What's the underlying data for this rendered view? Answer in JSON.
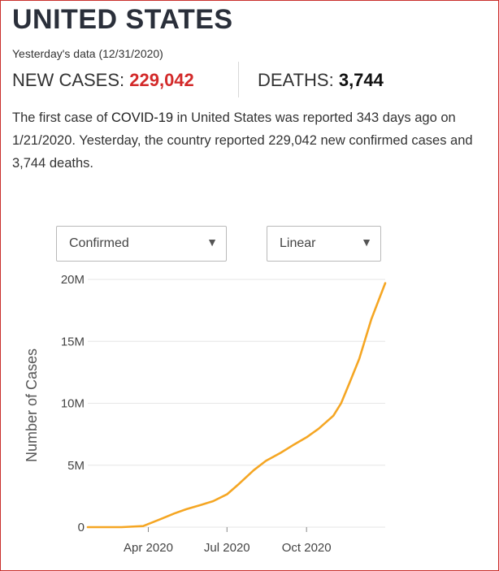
{
  "header": {
    "country": "UNITED STATES",
    "date_line": "Yesterday's data (12/31/2020)"
  },
  "stats": {
    "cases_label": "NEW CASES: ",
    "cases_value": "229,042",
    "deaths_label": "DEATHS: ",
    "deaths_value": "3,744"
  },
  "summary": {
    "part1": "The first case of ",
    "bold": "COVID-19",
    "part2": " in United States was reported 343 days ago on 1/21/2020. Yesterday, the country reported 229,042 new confirmed cases and 3,744 deaths."
  },
  "controls": {
    "metric_select": "Confirmed",
    "scale_select": "Linear",
    "arrow_icon": "triangle-down-icon"
  },
  "colors": {
    "accent_red": "#d32a2a",
    "line": "#f5a623",
    "frame_border": "#c9302c"
  },
  "chart_data": {
    "type": "line",
    "ylabel": "Number of Cases",
    "xlabel": "",
    "x_domain": [
      "2020-01-22",
      "2020-12-31"
    ],
    "ylim": [
      0,
      20000000
    ],
    "y_ticks": [
      {
        "value": 0,
        "label": "0"
      },
      {
        "value": 5000000,
        "label": "5M"
      },
      {
        "value": 10000000,
        "label": "10M"
      },
      {
        "value": 15000000,
        "label": "15M"
      },
      {
        "value": 20000000,
        "label": "20M"
      }
    ],
    "x_ticks": [
      {
        "value": "2020-04-01",
        "label": "Apr 2020"
      },
      {
        "value": "2020-07-01",
        "label": "Jul 2020"
      },
      {
        "value": "2020-10-01",
        "label": "Oct 2020"
      }
    ],
    "grid": "horizontal",
    "series": [
      {
        "points": [
          [
            "2020-01-22",
            0
          ],
          [
            "2020-03-01",
            100
          ],
          [
            "2020-03-26",
            85000
          ],
          [
            "2020-04-15",
            640000
          ],
          [
            "2020-05-01",
            1100000
          ],
          [
            "2020-05-15",
            1450000
          ],
          [
            "2020-06-01",
            1800000
          ],
          [
            "2020-06-15",
            2100000
          ],
          [
            "2020-07-01",
            2650000
          ],
          [
            "2020-07-15",
            3500000
          ],
          [
            "2020-08-01",
            4600000
          ],
          [
            "2020-08-15",
            5350000
          ],
          [
            "2020-09-01",
            6000000
          ],
          [
            "2020-09-15",
            6600000
          ],
          [
            "2020-10-01",
            7250000
          ],
          [
            "2020-10-15",
            7950000
          ],
          [
            "2020-11-01",
            9000000
          ],
          [
            "2020-11-10",
            10000000
          ],
          [
            "2020-11-20",
            11700000
          ],
          [
            "2020-12-01",
            13600000
          ],
          [
            "2020-12-15",
            16800000
          ],
          [
            "2020-12-31",
            19700000
          ]
        ]
      }
    ]
  }
}
